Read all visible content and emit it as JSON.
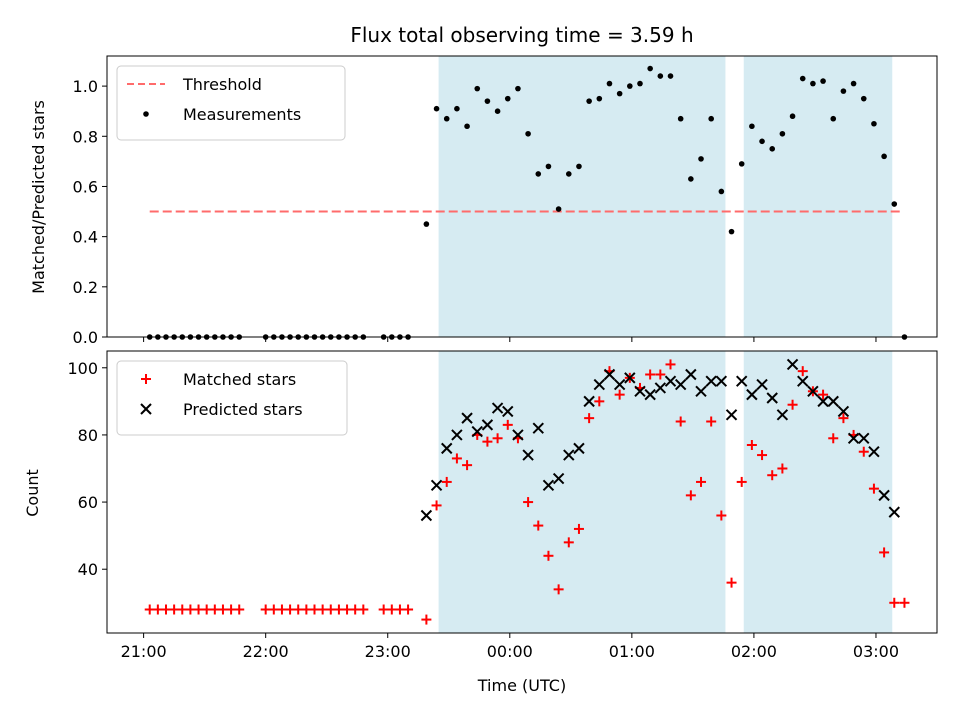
{
  "chart_data": [
    {
      "type": "scatter",
      "title": "Flux total observing time = 3.59 h",
      "xlabel": "",
      "ylabel": "Matched/Predicted stars",
      "ylim": [
        0,
        1.12
      ],
      "yticks": [
        "0.0",
        "0.2",
        "0.4",
        "0.6",
        "0.8",
        "1.0"
      ],
      "legend_position": "top-left",
      "shaded_intervals": [
        [
          "23:25",
          "01:46"
        ],
        [
          "01:55",
          "03:08"
        ]
      ],
      "shade_color": "#add8e6",
      "threshold": {
        "name": "Threshold",
        "value": 0.5,
        "x_start": "21:03",
        "x_end": "03:13",
        "color": "#ff6b6b"
      },
      "series": [
        {
          "name": "Measurements",
          "color": "#000000",
          "marker": "dot",
          "x": [
            "21:03",
            "21:07",
            "21:11",
            "21:15",
            "21:19",
            "21:23",
            "21:27",
            "21:31",
            "21:35",
            "21:39",
            "21:43",
            "21:47",
            "22:00",
            "22:04",
            "22:08",
            "22:12",
            "22:16",
            "22:20",
            "22:24",
            "22:28",
            "22:32",
            "22:36",
            "22:40",
            "22:44",
            "22:48",
            "22:58",
            "23:02",
            "23:06",
            "23:10",
            "23:19",
            "23:24",
            "23:29",
            "23:34",
            "23:39",
            "23:44",
            "23:49",
            "23:54",
            "23:59",
            "00:04",
            "00:09",
            "00:14",
            "00:19",
            "00:24",
            "00:29",
            "00:34",
            "00:39",
            "00:44",
            "00:49",
            "00:54",
            "00:59",
            "01:04",
            "01:09",
            "01:14",
            "01:19",
            "01:24",
            "01:29",
            "01:34",
            "01:39",
            "01:44",
            "01:49",
            "01:54",
            "01:59",
            "02:04",
            "02:09",
            "02:14",
            "02:19",
            "02:24",
            "02:29",
            "02:34",
            "02:39",
            "02:44",
            "02:49",
            "02:54",
            "02:59",
            "03:04",
            "03:09",
            "03:14"
          ],
          "y": [
            0,
            0,
            0,
            0,
            0,
            0,
            0,
            0,
            0,
            0,
            0,
            0,
            0,
            0,
            0,
            0,
            0,
            0,
            0,
            0,
            0,
            0,
            0,
            0,
            0,
            0,
            0,
            0,
            0,
            0.45,
            0.91,
            0.87,
            0.91,
            0.84,
            0.99,
            0.94,
            0.9,
            0.95,
            0.99,
            0.81,
            0.65,
            0.68,
            0.51,
            0.65,
            0.68,
            0.94,
            0.95,
            1.01,
            0.97,
            1.0,
            1.01,
            1.07,
            1.04,
            1.04,
            0.87,
            0.63,
            0.71,
            0.87,
            0.58,
            0.42,
            0.69,
            0.84,
            0.78,
            0.75,
            0.81,
            0.88,
            1.03,
            1.01,
            1.02,
            0.87,
            0.98,
            1.01,
            0.95,
            0.85,
            0.72,
            0.53,
            0.0
          ]
        }
      ]
    },
    {
      "type": "scatter",
      "title": "",
      "xlabel": "Time (UTC)",
      "ylabel": "Count",
      "ylim": [
        21,
        105
      ],
      "yticks": [
        "40",
        "60",
        "80",
        "100"
      ],
      "xticks": [
        "21:00",
        "22:00",
        "23:00",
        "00:00",
        "01:00",
        "02:00",
        "03:00"
      ],
      "legend_position": "top-left",
      "series": [
        {
          "name": "Matched stars",
          "color": "#ff0000",
          "marker": "plus",
          "x": [
            "21:03",
            "21:07",
            "21:11",
            "21:15",
            "21:19",
            "21:23",
            "21:27",
            "21:31",
            "21:35",
            "21:39",
            "21:43",
            "21:47",
            "22:00",
            "22:04",
            "22:08",
            "22:12",
            "22:16",
            "22:20",
            "22:24",
            "22:28",
            "22:32",
            "22:36",
            "22:40",
            "22:44",
            "22:48",
            "22:58",
            "23:02",
            "23:06",
            "23:10",
            "23:19",
            "23:24",
            "23:29",
            "23:34",
            "23:39",
            "23:44",
            "23:49",
            "23:54",
            "23:59",
            "00:04",
            "00:09",
            "00:14",
            "00:19",
            "00:24",
            "00:29",
            "00:34",
            "00:39",
            "00:44",
            "00:49",
            "00:54",
            "00:59",
            "01:04",
            "01:09",
            "01:14",
            "01:19",
            "01:24",
            "01:29",
            "01:34",
            "01:39",
            "01:44",
            "01:49",
            "01:54",
            "01:59",
            "02:04",
            "02:09",
            "02:14",
            "02:19",
            "02:24",
            "02:29",
            "02:34",
            "02:39",
            "02:44",
            "02:49",
            "02:54",
            "02:59",
            "03:04",
            "03:09",
            "03:14"
          ],
          "y": [
            28,
            28,
            28,
            28,
            28,
            28,
            28,
            28,
            28,
            28,
            28,
            28,
            28,
            28,
            28,
            28,
            28,
            28,
            28,
            28,
            28,
            28,
            28,
            28,
            28,
            28,
            28,
            28,
            28,
            25,
            59,
            66,
            73,
            71,
            80,
            78,
            79,
            83,
            79,
            60,
            53,
            44,
            34,
            48,
            52,
            85,
            90,
            99,
            92,
            97,
            94,
            98,
            98,
            101,
            84,
            62,
            66,
            84,
            56,
            36,
            66,
            77,
            74,
            68,
            70,
            89,
            99,
            93,
            92,
            79,
            85,
            80,
            75,
            64,
            45,
            30,
            30
          ]
        },
        {
          "name": "Predicted stars",
          "color": "#000000",
          "marker": "x",
          "x": [
            "23:19",
            "23:24",
            "23:29",
            "23:34",
            "23:39",
            "23:44",
            "23:49",
            "23:54",
            "23:59",
            "00:04",
            "00:09",
            "00:14",
            "00:19",
            "00:24",
            "00:29",
            "00:34",
            "00:39",
            "00:44",
            "00:49",
            "00:54",
            "00:59",
            "01:04",
            "01:09",
            "01:14",
            "01:19",
            "01:24",
            "01:29",
            "01:34",
            "01:39",
            "01:44",
            "01:49",
            "01:54",
            "01:59",
            "02:04",
            "02:09",
            "02:14",
            "02:19",
            "02:24",
            "02:29",
            "02:34",
            "02:39",
            "02:44",
            "02:49",
            "02:54",
            "02:59",
            "03:04",
            "03:09"
          ],
          "y": [
            56,
            65,
            76,
            80,
            85,
            81,
            83,
            88,
            87,
            80,
            74,
            82,
            65,
            67,
            74,
            76,
            90,
            95,
            98,
            95,
            97,
            93,
            92,
            94,
            96,
            95,
            98,
            93,
            96,
            96,
            86,
            96,
            92,
            95,
            91,
            86,
            101,
            96,
            93,
            90,
            90,
            87,
            79,
            79,
            75,
            62,
            57
          ]
        }
      ]
    }
  ]
}
